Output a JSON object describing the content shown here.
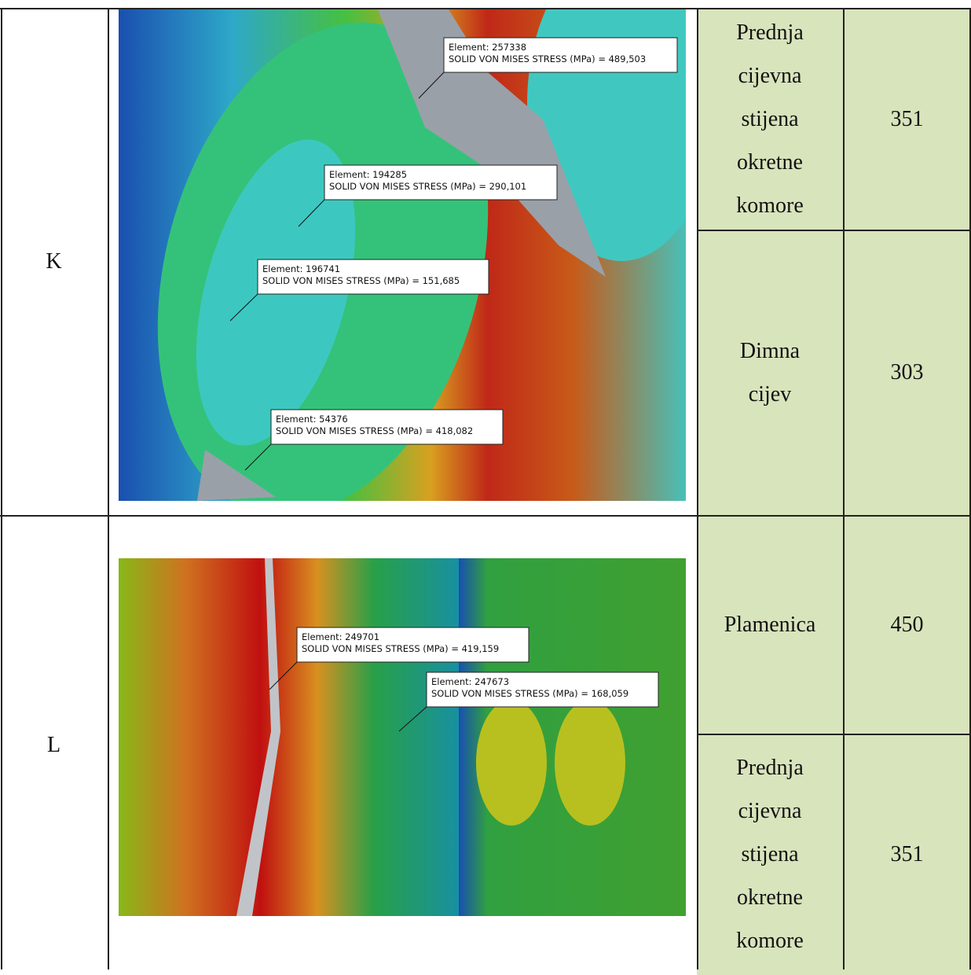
{
  "rows": [
    {
      "label": "K",
      "annotations": [
        {
          "element": "Element: 257338",
          "stress": "SOLID VON MISES STRESS (MPa)  = 489,503"
        },
        {
          "element": "Element: 194285",
          "stress": "SOLID VON MISES STRESS (MPa)  = 290,101"
        },
        {
          "element": "Element: 196741",
          "stress": "SOLID VON MISES STRESS (MPa)  = 151,685"
        },
        {
          "element": "Element: 54376",
          "stress": "SOLID VON MISES STRESS (MPa)  = 418,082"
        }
      ],
      "parts": [
        {
          "name": "Prednja cijevna stijena okretne komore",
          "value": 351
        },
        {
          "name": "Dimna cijev",
          "value": 303
        }
      ]
    },
    {
      "label": "L",
      "annotations": [
        {
          "element": "Element: 249701",
          "stress": "SOLID VON MISES STRESS (MPa)  = 419,159"
        },
        {
          "element": "Element: 247673",
          "stress": "SOLID VON MISES STRESS (MPa)  = 168,059"
        }
      ],
      "parts": [
        {
          "name": "Plamenica",
          "value": 450
        },
        {
          "name": "Prednja cijevna stijena okretne komore",
          "value": 351
        }
      ]
    }
  ]
}
